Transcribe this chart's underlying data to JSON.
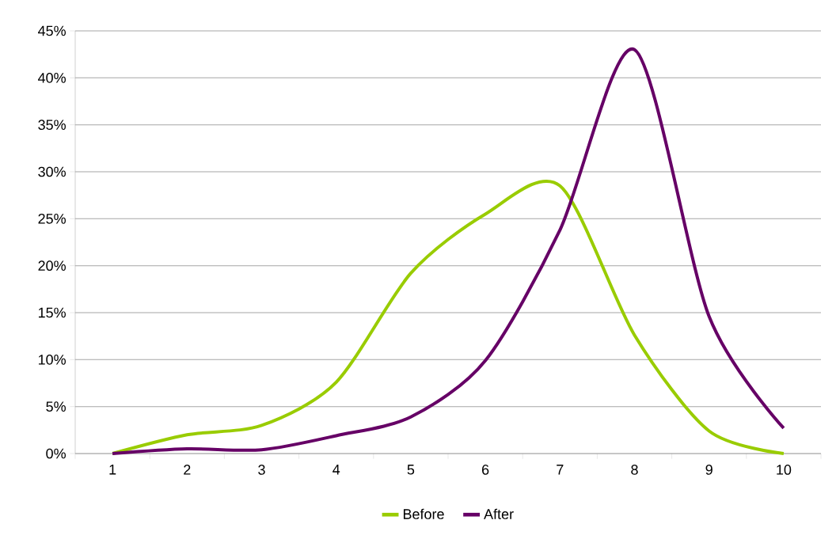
{
  "chart_data": {
    "type": "line",
    "categories": [
      "1",
      "2",
      "3",
      "4",
      "5",
      "6",
      "7",
      "8",
      "9",
      "10"
    ],
    "series": [
      {
        "name": "Before",
        "color": "#99cc00",
        "values": [
          0,
          2.0,
          3.0,
          7.6,
          19.2,
          25.5,
          28.5,
          12.6,
          2.4,
          0
        ]
      },
      {
        "name": "After",
        "color": "#660066",
        "values": [
          0,
          0.5,
          0.4,
          1.9,
          3.9,
          9.9,
          23.8,
          43.0,
          14.6,
          2.7
        ]
      }
    ],
    "ylim": [
      0,
      45
    ],
    "yticks": [
      {
        "value": 0,
        "label": "0%"
      },
      {
        "value": 5,
        "label": "5%"
      },
      {
        "value": 10,
        "label": "10%"
      },
      {
        "value": 15,
        "label": "15%"
      },
      {
        "value": 20,
        "label": "20%"
      },
      {
        "value": 25,
        "label": "25%"
      },
      {
        "value": 30,
        "label": "30%"
      },
      {
        "value": 35,
        "label": "35%"
      },
      {
        "value": 40,
        "label": "40%"
      },
      {
        "value": 45,
        "label": "45%"
      }
    ],
    "grid": "y",
    "legend": "bottom",
    "marker": "none",
    "line_style": "solid"
  }
}
